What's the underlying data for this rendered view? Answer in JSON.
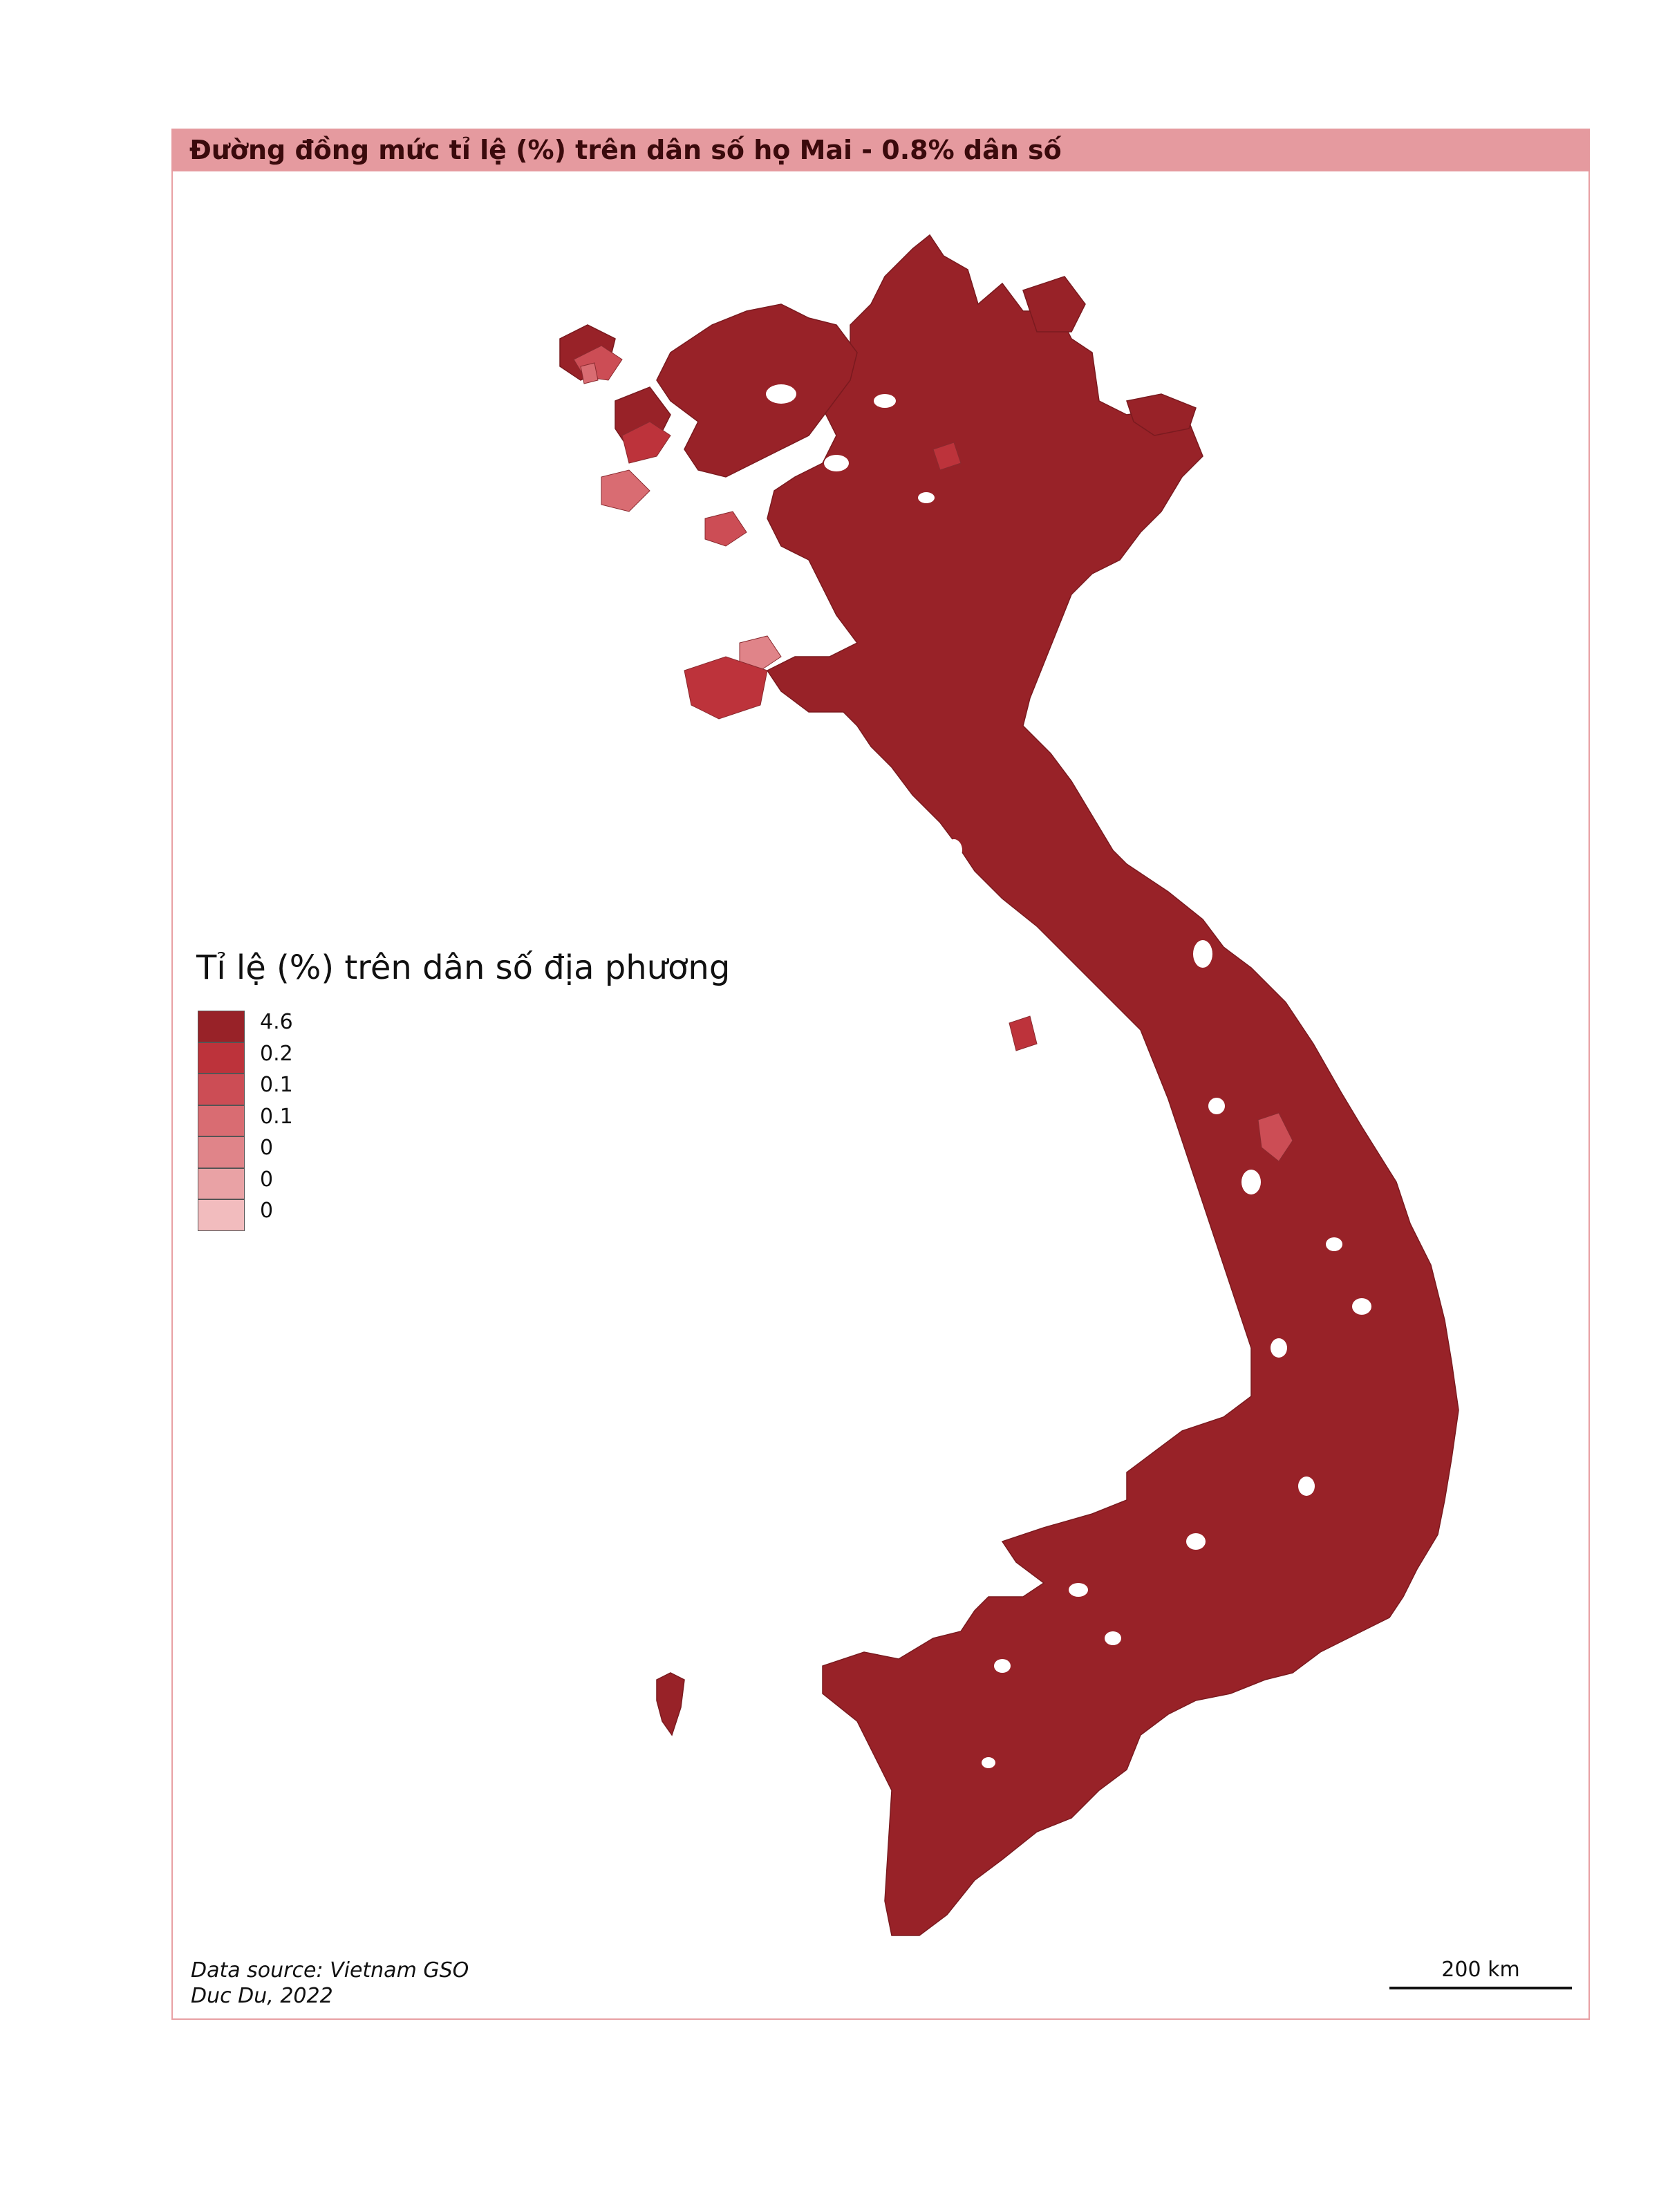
{
  "title": "Đường đồng mức tỉ lệ (%) trên dân số họ Mai - 0.8% dân số",
  "legend": {
    "title": "Tỉ lệ (%) trên dân số địa phương",
    "items": [
      {
        "label": "4.6",
        "color": "#982228"
      },
      {
        "label": "0.2",
        "color": "#bd333b"
      },
      {
        "label": "0.1",
        "color": "#cc4d55"
      },
      {
        "label": "0.1",
        "color": "#d96c72"
      },
      {
        "label": "0",
        "color": "#e08489"
      },
      {
        "label": "0",
        "color": "#e9a2a5"
      },
      {
        "label": "0",
        "color": "#f2bcbe"
      }
    ]
  },
  "map": {
    "dominant_color": "#982228"
  },
  "source": {
    "line1": "Data source: Vietnam GSO",
    "line2": "Duc Du, 2022"
  },
  "scale": {
    "label": "200 km"
  },
  "colors": {
    "frame": "#e8a0a4",
    "title_bar": "#e59a9f",
    "title_text": "#3a0a0c"
  }
}
